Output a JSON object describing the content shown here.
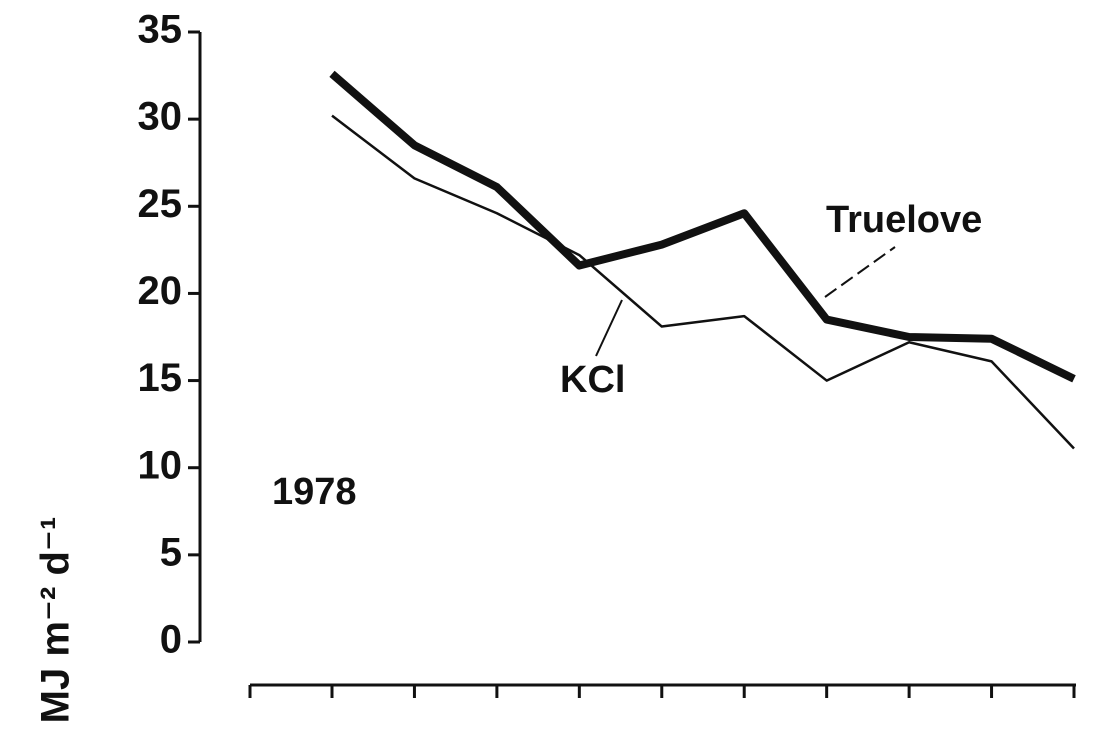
{
  "chart_data": {
    "type": "line",
    "y_label": "MJ m⁻² d⁻¹",
    "annotations": [
      "1978"
    ],
    "categories": [
      null,
      null,
      null,
      null,
      null,
      null,
      null,
      null,
      null,
      null
    ],
    "series": [
      {
        "name": "Truelove",
        "color": "#111111",
        "values": [
          32.6,
          28.5,
          26.1,
          21.6,
          22.8,
          24.6,
          18.5,
          17.5,
          17.4,
          15.1
        ]
      },
      {
        "name": "KCl",
        "color": "#111111",
        "values": [
          30.2,
          26.6,
          24.6,
          22.2,
          18.1,
          18.7,
          15.0,
          17.2,
          16.1,
          11.1
        ]
      }
    ],
    "ylim": [
      0,
      35
    ],
    "yticks": [
      0,
      5,
      10,
      15,
      20,
      25,
      30,
      35
    ]
  }
}
